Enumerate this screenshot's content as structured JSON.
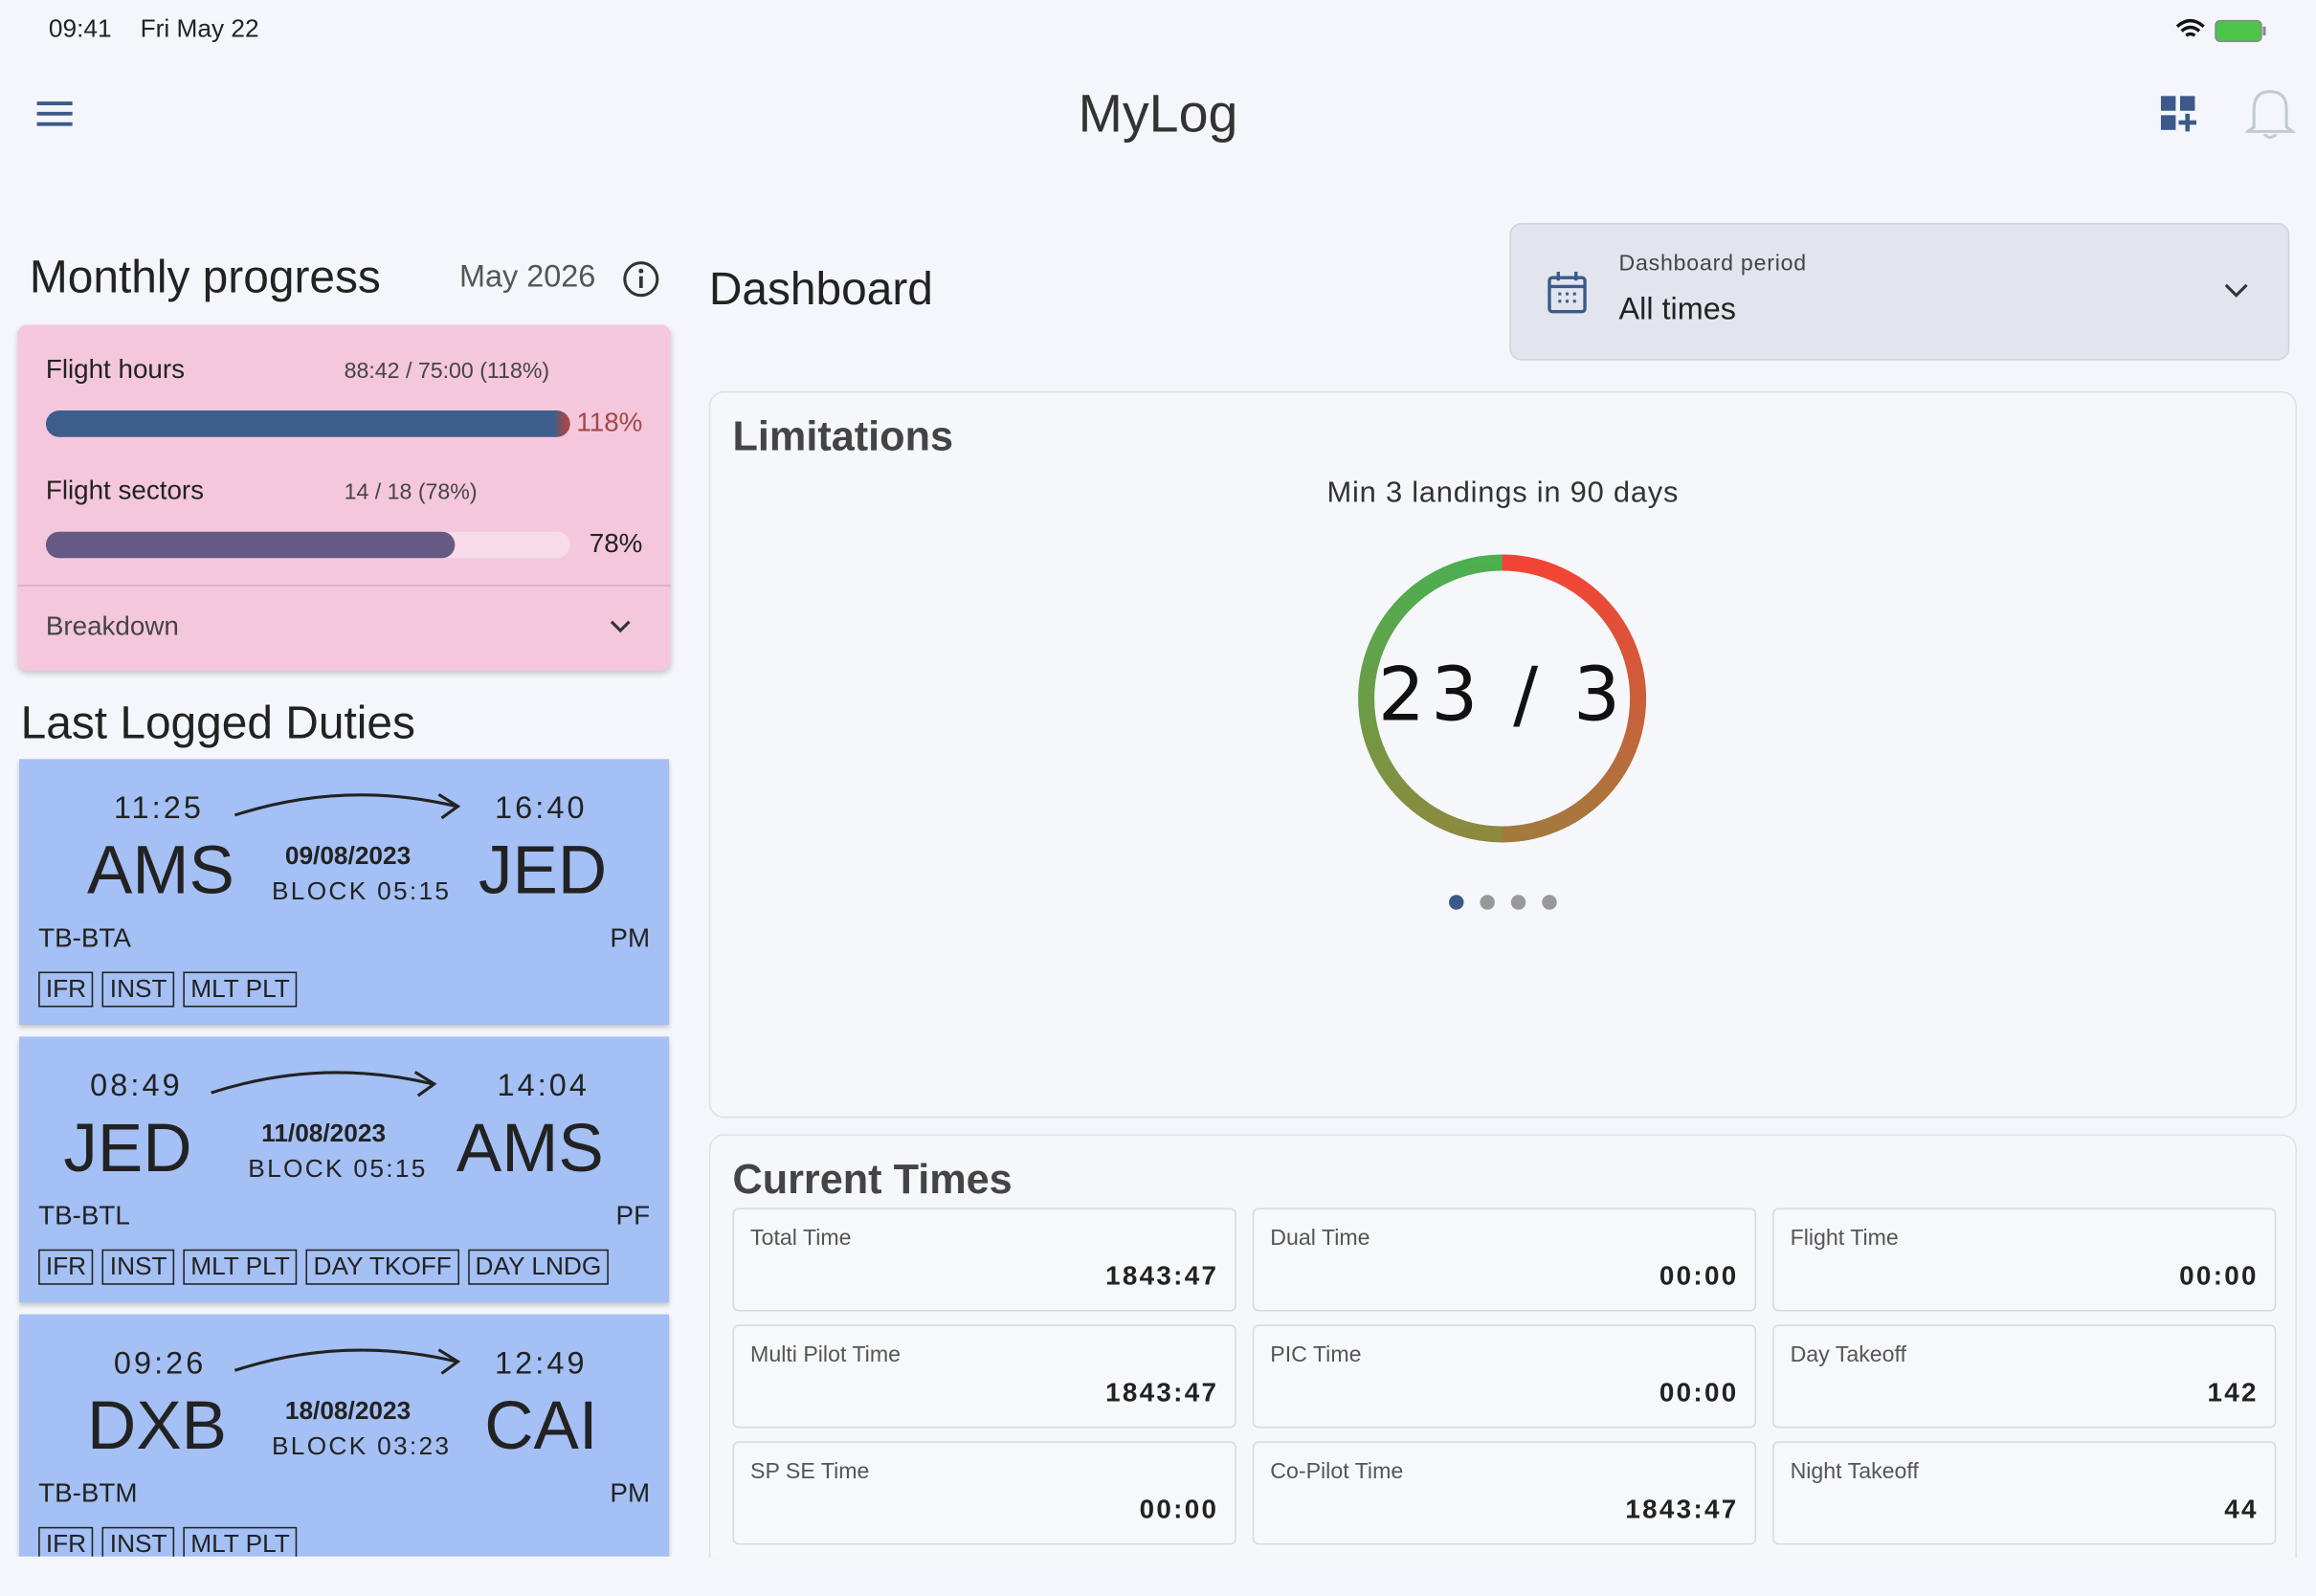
{
  "status_bar": {
    "time": "09:41",
    "date": "Fri May 22"
  },
  "app_bar": {
    "title": "MyLog"
  },
  "monthly_progress": {
    "title": "Monthly progress",
    "period": "May 2026",
    "items": [
      {
        "label": "Flight hours",
        "detail": "88:42 / 75:00 (118%)",
        "progress": 118,
        "progress_label": "118%"
      },
      {
        "label": "Flight sectors",
        "detail": "14 / 18 (78%)",
        "progress": 78,
        "progress_label": "78%"
      }
    ],
    "breakdown": "Breakdown"
  },
  "last_duties": {
    "title": "Last Logged Duties",
    "items": [
      {
        "dep_time": "11:25",
        "dep": "AMS",
        "date": "09/08/2023",
        "block": "BLOCK 05:15",
        "arr_time": "16:40",
        "arr": "JED",
        "reg": "TB-BTA",
        "role": "PM",
        "tags": [
          "IFR",
          "INST",
          "MLT PLT"
        ]
      },
      {
        "dep_time": "08:49",
        "dep": "JED",
        "date": "11/08/2023",
        "block": "BLOCK 05:15",
        "arr_time": "14:04",
        "arr": "AMS",
        "reg": "TB-BTL",
        "role": "PF",
        "tags": [
          "IFR",
          "INST",
          "MLT PLT",
          "DAY TKOFF",
          "DAY LNDG"
        ]
      },
      {
        "dep_time": "09:26",
        "dep": "DXB",
        "date": "18/08/2023",
        "block": "BLOCK 03:23",
        "arr_time": "12:49",
        "arr": "CAI",
        "reg": "TB-BTM",
        "role": "PM",
        "tags": [
          "IFR",
          "INST",
          "MLT PLT"
        ]
      }
    ]
  },
  "dashboard": {
    "title": "Dashboard",
    "period_label": "Dashboard period",
    "period_value": "All times"
  },
  "limitations": {
    "title": "Limitations",
    "caption": "Min 3 landings in 90 days",
    "gauge_text": "23 / 3"
  },
  "current_times": {
    "title": "Current Times",
    "cells": [
      {
        "label": "Total Time",
        "value": "1843:47"
      },
      {
        "label": "Dual Time",
        "value": "00:00"
      },
      {
        "label": "Flight Time",
        "value": "00:00"
      },
      {
        "label": "Multi Pilot Time",
        "value": "1843:47"
      },
      {
        "label": "PIC Time",
        "value": "00:00"
      },
      {
        "label": "Day Takeoff",
        "value": "142"
      },
      {
        "label": "SP SE Time",
        "value": "00:00"
      },
      {
        "label": "Co-Pilot Time",
        "value": "1843:47"
      },
      {
        "label": "Night Takeoff",
        "value": "44"
      }
    ]
  }
}
